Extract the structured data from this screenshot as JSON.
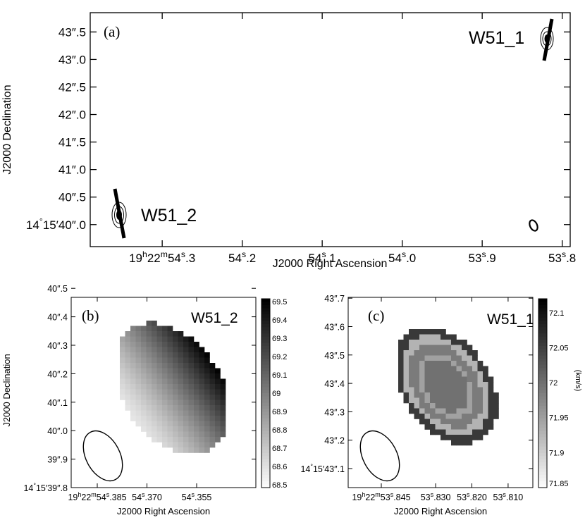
{
  "chart_data": [
    {
      "panel": "(a)",
      "type": "scatter",
      "xlabel": "J2000 Right Ascension",
      "ylabel": "J2000 Declination",
      "x_ticks": [
        {
          "value": 54.3,
          "label": "19h22m54s.3"
        },
        {
          "value": 54.2,
          "label": "54s.2"
        },
        {
          "value": 54.1,
          "label": "54s.1"
        },
        {
          "value": 54.0,
          "label": "54s.0"
        },
        {
          "value": 53.9,
          "label": "53s.9"
        },
        {
          "value": 53.8,
          "label": "53s.8"
        }
      ],
      "y_ticks": [
        {
          "value": 40.0,
          "label": "14°15'40''.0"
        },
        {
          "value": 40.5,
          "label": "40''.5"
        },
        {
          "value": 41.0,
          "label": "41''.0"
        },
        {
          "value": 41.5,
          "label": "41''.5"
        },
        {
          "value": 42.0,
          "label": "42''.0"
        },
        {
          "value": 42.5,
          "label": "42''.5"
        },
        {
          "value": 43.0,
          "label": "43''.0"
        },
        {
          "value": 43.5,
          "label": "43''.5"
        }
      ],
      "xlim": [
        54.39,
        53.79
      ],
      "ylim": [
        39.6,
        43.85
      ],
      "sources": [
        {
          "name": "W51_2",
          "x": 54.363,
          "y": 40.2
        },
        {
          "name": "W51_1",
          "x": 53.817,
          "y": 43.4
        }
      ],
      "beam": "ellipse at lower right"
    },
    {
      "panel": "(b)",
      "type": "heatmap",
      "source": "W51_2",
      "xlabel": "J2000 Right Ascension",
      "ylabel": "J2000 Declination",
      "x_ticks": [
        {
          "value": 54.385,
          "label": "19h22m54s.385"
        },
        {
          "value": 54.37,
          "label": "54s.370"
        },
        {
          "value": 54.355,
          "label": "54s.355"
        }
      ],
      "y_ticks": [
        {
          "value": 39.8,
          "label": "14°15'39''.8"
        },
        {
          "value": 39.9,
          "label": "39''.9"
        },
        {
          "value": 40.0,
          "label": "40''.0"
        },
        {
          "value": 40.1,
          "label": "40''.1"
        },
        {
          "value": 40.2,
          "label": "40''.2"
        },
        {
          "value": 40.3,
          "label": "40''.3"
        },
        {
          "value": 40.4,
          "label": "40''.4"
        },
        {
          "value": 40.5,
          "label": "40''.5"
        }
      ],
      "colorbar": {
        "labels": [
          "69.5",
          "69.4",
          "69.3",
          "69.2",
          "69.1",
          "69",
          "68.9",
          "68.8",
          "68.7",
          "68.6",
          "68.5"
        ],
        "range": [
          68.5,
          69.5
        ],
        "colormap": "grayscale, white low to black high"
      },
      "gradient": "velocity increases from lower-left (68.6) to upper-right (69.5)"
    },
    {
      "panel": "(c)",
      "type": "heatmap",
      "source": "W51_1",
      "xlabel": "J2000 Right Ascension",
      "ylabel": "J2000 Declination",
      "x_ticks": [
        {
          "value": 53.845,
          "label": "19h22m53s.845"
        },
        {
          "value": 53.83,
          "label": "53s.830"
        },
        {
          "value": 53.82,
          "label": "53s.820"
        },
        {
          "value": 53.81,
          "label": "53s.810"
        }
      ],
      "y_ticks": [
        {
          "value": 43.1,
          "label": "14°15'43''.1"
        },
        {
          "value": 43.2,
          "label": "43''.2"
        },
        {
          "value": 43.3,
          "label": "43''.3"
        },
        {
          "value": 43.4,
          "label": "43''.4"
        },
        {
          "value": 43.5,
          "label": "43''.5"
        },
        {
          "value": 43.6,
          "label": "43''.6"
        },
        {
          "value": 43.7,
          "label": "43''.7"
        }
      ],
      "colorbar": {
        "labels": [
          "72.1",
          "72.05",
          "72",
          "71.95",
          "71.9",
          "71.85"
        ],
        "range": [
          71.85,
          72.12
        ],
        "unit": "(km/s)",
        "colormap": "grayscale, white low to black high"
      },
      "pattern": "concentric rings: dark outer edge (~72.05), light ring (~71.93), mid-gray core (~71.99)"
    }
  ],
  "labels": {
    "a_panel": "(a)",
    "b_panel": "(b)",
    "c_panel": "(c)",
    "w51_1": "W51_1",
    "w51_2": "W51_2",
    "top_xlabel": "J2000 Right Ascension",
    "top_ylabel": "J2000 Declination",
    "b_xlabel": "J2000 Right Ascension",
    "b_ylabel": "J2000 Declination",
    "c_xlabel": "J2000 Right Ascension",
    "c_unit": "(km/s)"
  }
}
